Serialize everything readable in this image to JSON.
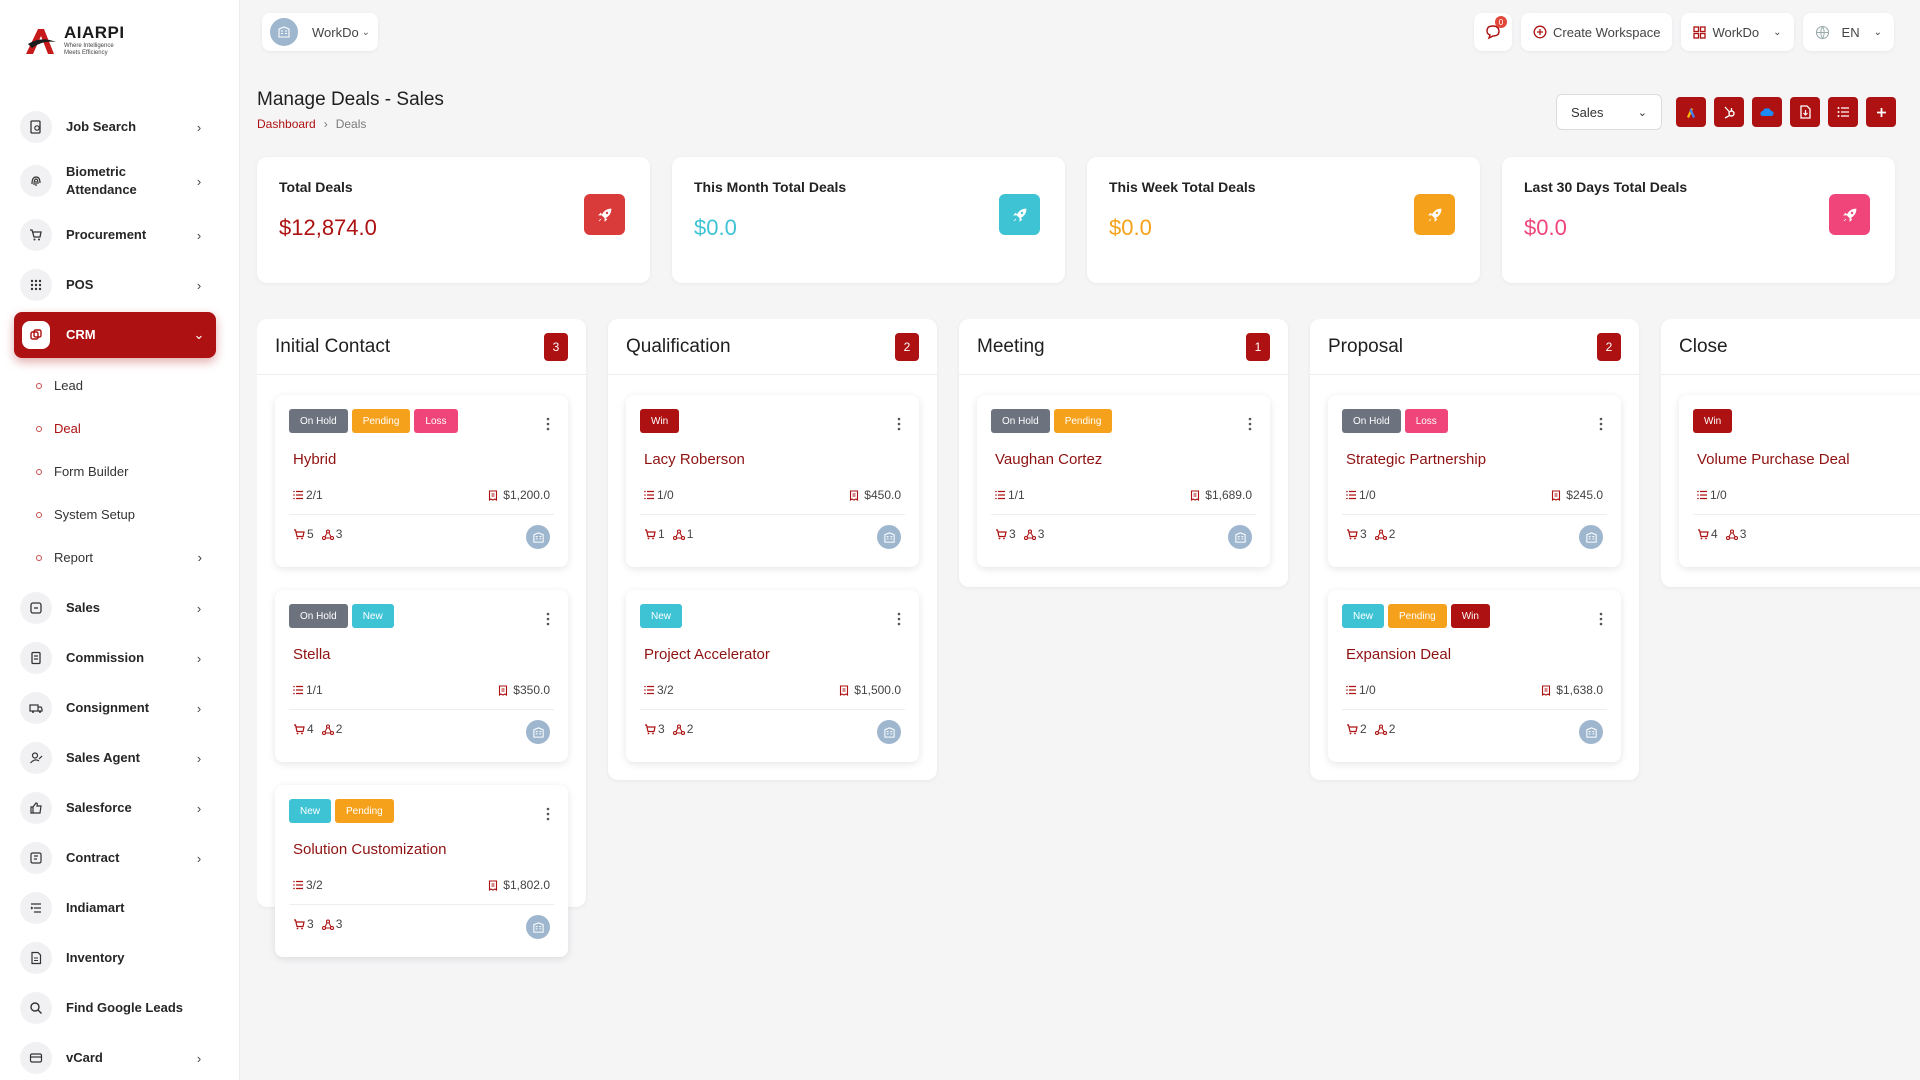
{
  "brand": {
    "title": "AIARPI",
    "tagline": "Where Intelligence Meets Efficiency"
  },
  "sidebar": {
    "items": [
      {
        "label": "Job Search",
        "icon": "job-search-icon",
        "chevron": true
      },
      {
        "label": "Biometric Attendance",
        "icon": "fingerprint-icon",
        "chevron": true
      },
      {
        "label": "Procurement",
        "icon": "cart-icon",
        "chevron": true
      },
      {
        "label": "POS",
        "icon": "grid-icon",
        "chevron": true
      },
      {
        "label": "CRM",
        "icon": "crm-icon",
        "chevron": true,
        "active": true
      }
    ],
    "crm_sub": [
      {
        "label": "Lead"
      },
      {
        "label": "Deal",
        "active": true
      },
      {
        "label": "Form Builder"
      },
      {
        "label": "System Setup"
      },
      {
        "label": "Report",
        "chevron": true
      }
    ],
    "items_after": [
      {
        "label": "Sales",
        "icon": "sales-icon",
        "chevron": true
      },
      {
        "label": "Commission",
        "icon": "commission-icon",
        "chevron": true
      },
      {
        "label": "Consignment",
        "icon": "truck-icon",
        "chevron": true
      },
      {
        "label": "Sales Agent",
        "icon": "agent-icon",
        "chevron": true
      },
      {
        "label": "Salesforce",
        "icon": "thumbs-up-icon",
        "chevron": true
      },
      {
        "label": "Contract",
        "icon": "contract-icon",
        "chevron": true
      },
      {
        "label": "Indiamart",
        "icon": "list-icon",
        "chevron": false
      },
      {
        "label": "Inventory",
        "icon": "inventory-icon",
        "chevron": false
      },
      {
        "label": "Find Google Leads",
        "icon": "search-icon",
        "chevron": false
      },
      {
        "label": "vCard",
        "icon": "card-icon",
        "chevron": true
      }
    ]
  },
  "header": {
    "workspace": "WorkDo",
    "notification_count": "0",
    "create_workspace": "Create Workspace",
    "workspace_menu": "WorkDo",
    "language": "EN"
  },
  "page": {
    "title": "Manage Deals - Sales",
    "breadcrumb": [
      "Dashboard",
      "Deals"
    ],
    "pipeline_select": "Sales"
  },
  "stats": [
    {
      "title": "Total Deals",
      "value": "$12,874.0",
      "color": "#d93b3b"
    },
    {
      "title": "This Month Total Deals",
      "value": "$0.0",
      "color": "#3ec3d5"
    },
    {
      "title": "This Week Total Deals",
      "value": "$0.0",
      "color": "#f6a11b"
    },
    {
      "title": "Last 30 Days Total Deals",
      "value": "$0.0",
      "color": "#f0457a"
    }
  ],
  "colors": {
    "accent": "#ad1111",
    "tag_onhold": "#6c737f",
    "tag_pending": "#f6a11b",
    "tag_loss": "#f0457a",
    "tag_new": "#3ec3d5",
    "tag_win": "#ad1111"
  },
  "board": [
    {
      "name": "Initial Contact",
      "count": "3",
      "cards": [
        {
          "tags": [
            "On Hold",
            "Pending",
            "Loss"
          ],
          "title": "Hybrid",
          "tasks": "2/1",
          "amount": "$1,200.0",
          "products": "5",
          "sources": "3"
        },
        {
          "tags": [
            "On Hold",
            "New"
          ],
          "title": "Stella",
          "tasks": "1/1",
          "amount": "$350.0",
          "products": "4",
          "sources": "2"
        },
        {
          "tags": [
            "New",
            "Pending"
          ],
          "title": "Solution Customization",
          "tasks": "3/2",
          "amount": "$1,802.0",
          "products": "3",
          "sources": "3"
        }
      ]
    },
    {
      "name": "Qualification",
      "count": "2",
      "cards": [
        {
          "tags": [
            "Win"
          ],
          "title": "Lacy Roberson",
          "tasks": "1/0",
          "amount": "$450.0",
          "products": "1",
          "sources": "1"
        },
        {
          "tags": [
            "New"
          ],
          "title": "Project Accelerator",
          "tasks": "3/2",
          "amount": "$1,500.0",
          "products": "3",
          "sources": "2"
        }
      ]
    },
    {
      "name": "Meeting",
      "count": "1",
      "cards": [
        {
          "tags": [
            "On Hold",
            "Pending"
          ],
          "title": "Vaughan Cortez",
          "tasks": "1/1",
          "amount": "$1,689.0",
          "products": "3",
          "sources": "3"
        }
      ]
    },
    {
      "name": "Proposal",
      "count": "2",
      "cards": [
        {
          "tags": [
            "On Hold",
            "Loss"
          ],
          "title": "Strategic Partnership",
          "tasks": "1/0",
          "amount": "$245.0",
          "products": "3",
          "sources": "2"
        },
        {
          "tags": [
            "New",
            "Pending",
            "Win"
          ],
          "title": "Expansion Deal",
          "tasks": "1/0",
          "amount": "$1,638.0",
          "products": "2",
          "sources": "2"
        }
      ]
    },
    {
      "name": "Close",
      "count": "",
      "cards": [
        {
          "tags": [
            "Win"
          ],
          "title": "Volume Purchase Deal",
          "tasks": "1/0",
          "amount": "",
          "products": "4",
          "sources": "3"
        }
      ]
    }
  ]
}
